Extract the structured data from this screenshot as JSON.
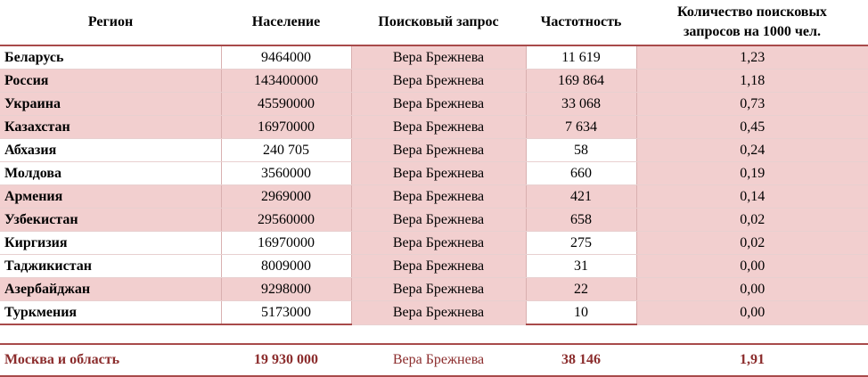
{
  "header": {
    "region": "Регион",
    "population": "Население",
    "query": "Поисковый запрос",
    "frequency": "Частотность",
    "per_thousand_line1": "Количество поисковых",
    "per_thousand_line2": "запросов на 1000 чел."
  },
  "rows": [
    {
      "region": "Беларусь",
      "population": "9464000",
      "query": "Вера Брежнева",
      "frequency": "11 619",
      "per_thousand": "1,23"
    },
    {
      "region": "Россия",
      "population": "143400000",
      "query": "Вера Брежнева",
      "frequency": "169 864",
      "per_thousand": "1,18"
    },
    {
      "region": "Украина",
      "population": "45590000",
      "query": "Вера Брежнева",
      "frequency": "33 068",
      "per_thousand": "0,73"
    },
    {
      "region": "Казахстан",
      "population": "16970000",
      "query": "Вера Брежнева",
      "frequency": "7 634",
      "per_thousand": "0,45"
    },
    {
      "region": "Абхазия",
      "population": "240 705",
      "query": "Вера Брежнева",
      "frequency": "58",
      "per_thousand": "0,24"
    },
    {
      "region": "Молдова",
      "population": "3560000",
      "query": "Вера Брежнева",
      "frequency": "660",
      "per_thousand": "0,19"
    },
    {
      "region": "Армения",
      "population": "2969000",
      "query": "Вера Брежнева",
      "frequency": "421",
      "per_thousand": "0,14"
    },
    {
      "region": "Узбекистан",
      "population": "29560000",
      "query": "Вера Брежнева",
      "frequency": "658",
      "per_thousand": "0,02"
    },
    {
      "region": "Киргизия",
      "population": "16970000",
      "query": "Вера Брежнева",
      "frequency": "275",
      "per_thousand": "0,02"
    },
    {
      "region": "Таджикистан",
      "population": "8009000",
      "query": "Вера Брежнева",
      "frequency": "31",
      "per_thousand": "0,00"
    },
    {
      "region": "Азербайджан",
      "population": "9298000",
      "query": "Вера Брежнева",
      "frequency": "22",
      "per_thousand": "0,00"
    },
    {
      "region": "Туркмения",
      "population": "5173000",
      "query": "Вера Брежнева",
      "frequency": "10",
      "per_thousand": "0,00"
    }
  ],
  "total": {
    "region": "Москва и область",
    "population": "19 930 000",
    "query": "Вера Брежнева",
    "frequency": "38 146",
    "per_thousand": "1,91"
  }
}
